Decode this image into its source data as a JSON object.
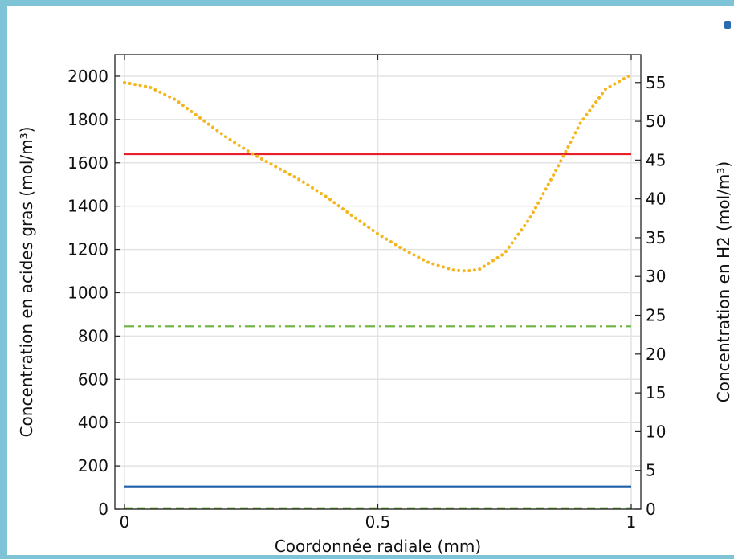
{
  "chart_data": {
    "type": "line",
    "xlabel": "Coordonnée radiale (mm)",
    "ylabel_left": "Concentration en acides gras (mol/m³)",
    "ylabel_right": "Concentration en H2 (mol/m³)",
    "xlim": [
      0,
      1
    ],
    "ylim_left": [
      0,
      2100
    ],
    "ylim_right": [
      0,
      58.6
    ],
    "x_ticks": [
      {
        "value": 0,
        "label": "0"
      },
      {
        "value": 0.5,
        "label": "0.5"
      },
      {
        "value": 1,
        "label": "1"
      }
    ],
    "y_left_ticks": [
      {
        "value": 0,
        "label": "0"
      },
      {
        "value": 200,
        "label": "200"
      },
      {
        "value": 400,
        "label": "400"
      },
      {
        "value": 600,
        "label": "600"
      },
      {
        "value": 800,
        "label": "800"
      },
      {
        "value": 1000,
        "label": "1000"
      },
      {
        "value": 1200,
        "label": "1200"
      },
      {
        "value": 1400,
        "label": "1400"
      },
      {
        "value": 1600,
        "label": "1600"
      },
      {
        "value": 1800,
        "label": "1800"
      },
      {
        "value": 2000,
        "label": "2000"
      }
    ],
    "y_right_ticks": [
      {
        "value": 0,
        "label": "0"
      },
      {
        "value": 5,
        "label": "5"
      },
      {
        "value": 10,
        "label": "10"
      },
      {
        "value": 15,
        "label": "15"
      },
      {
        "value": 20,
        "label": "20"
      },
      {
        "value": 25,
        "label": "25"
      },
      {
        "value": 30,
        "label": "30"
      },
      {
        "value": 35,
        "label": "35"
      },
      {
        "value": 40,
        "label": "40"
      },
      {
        "value": 45,
        "label": "45"
      },
      {
        "value": 50,
        "label": "50"
      },
      {
        "value": 55,
        "label": "55"
      }
    ],
    "grid": true,
    "series": [
      {
        "axis": "left",
        "color": "#e8202a",
        "style": "solid",
        "x": [
          0,
          1
        ],
        "y": [
          1640,
          1640
        ]
      },
      {
        "axis": "left",
        "color": "#6db33f",
        "style": "dashdot",
        "x": [
          0,
          1
        ],
        "y": [
          845,
          845
        ]
      },
      {
        "axis": "left",
        "color": "#1f5fa8",
        "style": "solid",
        "x": [
          0,
          1
        ],
        "y": [
          105,
          105
        ]
      },
      {
        "axis": "left",
        "color": "#6db33f",
        "style": "dashed",
        "x": [
          0,
          1
        ],
        "y": [
          5,
          5
        ]
      },
      {
        "axis": "right",
        "color": "#f5b51c",
        "style": "dotted",
        "x": [
          0,
          0.05,
          0.1,
          0.15,
          0.2,
          0.25,
          0.3,
          0.35,
          0.4,
          0.45,
          0.5,
          0.55,
          0.6,
          0.65,
          0.675,
          0.7,
          0.75,
          0.8,
          0.85,
          0.9,
          0.95,
          1.0
        ],
        "y": [
          55.0,
          54.4,
          52.8,
          50.4,
          48.0,
          45.9,
          44.1,
          42.3,
          40.2,
          37.8,
          35.5,
          33.5,
          31.8,
          30.8,
          30.7,
          30.9,
          33.0,
          37.5,
          43.5,
          49.8,
          54.2,
          56.0
        ]
      }
    ]
  },
  "colors": {
    "frame": "#7ec3d6",
    "grid": "#e3e3e3",
    "axis": "#222222"
  }
}
